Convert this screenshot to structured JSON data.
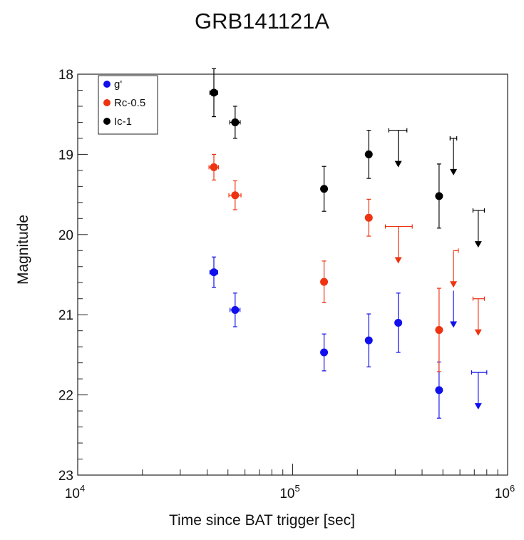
{
  "chart_data": {
    "type": "scatter",
    "title": "GRB141121A",
    "xlabel": "Time since BAT trigger [sec]",
    "ylabel": "Magnitude",
    "x_scale": "log",
    "xlim": [
      10000,
      1000000
    ],
    "ylim": [
      23,
      18
    ],
    "y_inverted": true,
    "x_ticks": [
      {
        "value": 10000,
        "base": "10",
        "exp": "4"
      },
      {
        "value": 100000,
        "base": "10",
        "exp": "5"
      },
      {
        "value": 1000000,
        "base": "10",
        "exp": "6"
      }
    ],
    "y_ticks": [
      "18",
      "19",
      "20",
      "21",
      "22",
      "23"
    ],
    "grid": false,
    "legend": "top-left",
    "series": [
      {
        "name": "g'",
        "color": "#1010ee",
        "points": [
          {
            "x": 43000,
            "y": 20.47,
            "xerr": [
              1800,
              1800
            ],
            "yerr": [
              0.19,
              0.19
            ]
          },
          {
            "x": 54000,
            "y": 20.94,
            "xerr": [
              2900,
              2900
            ],
            "yerr": [
              0.21,
              0.21
            ]
          },
          {
            "x": 140000,
            "y": 21.47,
            "xerr": [
              0,
              0
            ],
            "yerr": [
              0.23,
              0.23
            ]
          },
          {
            "x": 226000,
            "y": 21.32,
            "xerr": [
              0,
              0
            ],
            "yerr": [
              0.33,
              0.33
            ]
          },
          {
            "x": 310000,
            "y": 21.1,
            "xerr": [
              0,
              0
            ],
            "yerr": [
              0.37,
              0.37
            ]
          },
          {
            "x": 480000,
            "y": 21.94,
            "xerr": [
              0,
              0
            ],
            "yerr": [
              0.35,
              0.35
            ]
          }
        ],
        "upper_limits": [
          {
            "x": 560000,
            "y": 20.7,
            "xerr": [
              0,
              0
            ]
          },
          {
            "x": 730000,
            "y": 21.72,
            "xerr": [
              50000,
              70000
            ]
          }
        ]
      },
      {
        "name": "Rc-0.5",
        "color": "#ee3311",
        "points": [
          {
            "x": 43000,
            "y": 19.16,
            "xerr": [
              2200,
              2200
            ],
            "yerr": [
              0.16,
              0.16
            ]
          },
          {
            "x": 54000,
            "y": 19.51,
            "xerr": [
              3500,
              3500
            ],
            "yerr": [
              0.18,
              0.18
            ]
          },
          {
            "x": 140000,
            "y": 20.59,
            "xerr": [
              0,
              0
            ],
            "yerr": [
              0.26,
              0.26
            ]
          },
          {
            "x": 226000,
            "y": 19.79,
            "xerr": [
              0,
              0
            ],
            "yerr": [
              0.23,
              0.23
            ]
          },
          {
            "x": 480000,
            "y": 21.19,
            "xerr": [
              0,
              0
            ],
            "yerr": [
              0.52,
              0.52
            ]
          }
        ],
        "upper_limits": [
          {
            "x": 310000,
            "y": 19.9,
            "xerr": [
              40000,
              50000
            ]
          },
          {
            "x": 560000,
            "y": 20.2,
            "xerr": [
              0,
              30000
            ]
          },
          {
            "x": 730000,
            "y": 20.8,
            "xerr": [
              40000,
              50000
            ]
          }
        ]
      },
      {
        "name": "Ic-1",
        "color": "#000000",
        "points": [
          {
            "x": 43000,
            "y": 18.23,
            "xerr": [
              1800,
              1800
            ],
            "yerr": [
              0.3,
              0.3
            ]
          },
          {
            "x": 54000,
            "y": 18.6,
            "xerr": [
              3000,
              3000
            ],
            "yerr": [
              0.2,
              0.2
            ]
          },
          {
            "x": 140000,
            "y": 19.43,
            "xerr": [
              0,
              0
            ],
            "yerr": [
              0.28,
              0.28
            ]
          },
          {
            "x": 226000,
            "y": 19.0,
            "xerr": [
              0,
              0
            ],
            "yerr": [
              0.3,
              0.3
            ]
          },
          {
            "x": 480000,
            "y": 19.52,
            "xerr": [
              0,
              0
            ],
            "yerr": [
              0.4,
              0.4
            ]
          }
        ],
        "upper_limits": [
          {
            "x": 310000,
            "y": 18.7,
            "xerr": [
              30000,
              30000
            ]
          },
          {
            "x": 560000,
            "y": 18.8,
            "xerr": [
              20000,
              20000
            ]
          },
          {
            "x": 730000,
            "y": 19.7,
            "xerr": [
              40000,
              50000
            ]
          }
        ]
      }
    ]
  }
}
